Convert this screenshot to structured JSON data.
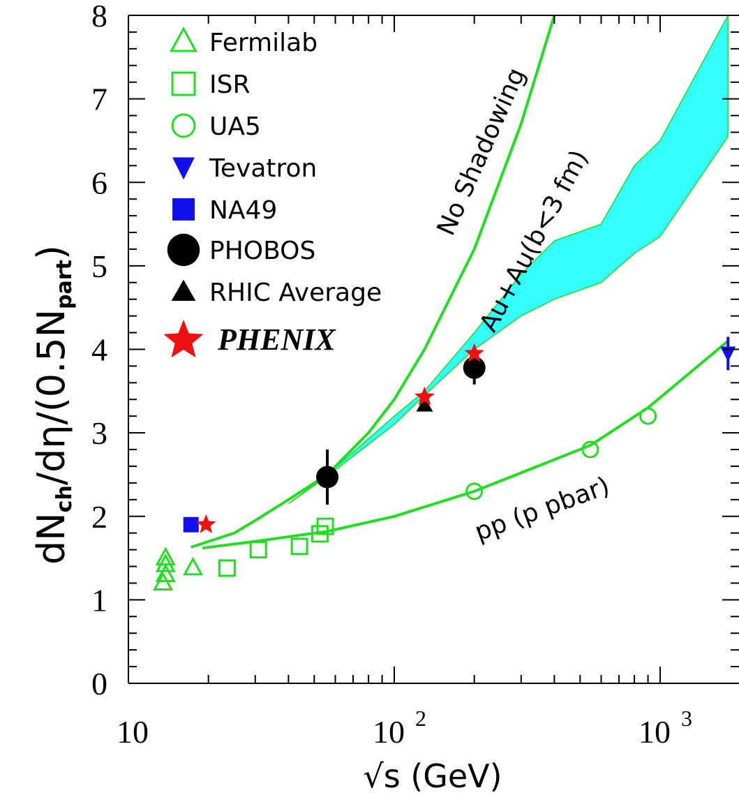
{
  "chart_data": {
    "type": "scatter",
    "xscale": "log",
    "xlim": [
      10,
      1800
    ],
    "ylim": [
      0,
      8
    ],
    "grid": false,
    "legend_placement": "top-left",
    "xlabel": "√s (GeV)",
    "ylabel": {
      "main_a": "dN",
      "sub_a": "ch",
      "main_b": "/dη/(0.5N",
      "sub_b": "part",
      "main_c": ")"
    },
    "y_ticks": [
      "0",
      "1",
      "2",
      "3",
      "4",
      "5",
      "6",
      "7",
      "8"
    ],
    "x_ticks": [
      {
        "value": 10,
        "base": "10",
        "exp": ""
      },
      {
        "value": 100,
        "base": "10",
        "exp": "2"
      },
      {
        "value": 1000,
        "base": "10",
        "exp": "3"
      }
    ],
    "series": [
      {
        "name": "Fermilab",
        "marker": "triangle-open",
        "color": "#22dd22",
        "points": [
          [
            13.5,
            1.2
          ],
          [
            13.8,
            1.3
          ],
          [
            13.8,
            1.42
          ],
          [
            13.8,
            1.5
          ],
          [
            17.5,
            1.38
          ]
        ]
      },
      {
        "name": "ISR",
        "marker": "square-open",
        "color": "#22dd22",
        "points": [
          [
            23.5,
            1.38
          ],
          [
            30.8,
            1.6
          ],
          [
            44,
            1.64
          ],
          [
            52.5,
            1.79
          ],
          [
            55,
            1.88
          ]
        ]
      },
      {
        "name": "UA5",
        "marker": "circle-open",
        "color": "#22dd22",
        "points": [
          [
            200,
            2.3
          ],
          [
            546,
            2.8
          ],
          [
            900,
            3.2
          ]
        ]
      },
      {
        "name": "Tevatron",
        "marker": "triangle-down-filled",
        "color": "#1010ee",
        "points": [
          [
            1800,
            3.95
          ]
        ],
        "errors": [
          0.2
        ]
      },
      {
        "name": "NA49",
        "marker": "square-filled",
        "color": "#1010ee",
        "points": [
          [
            17.2,
            1.9
          ]
        ]
      },
      {
        "name": "PHOBOS",
        "marker": "circle-filled",
        "color": "#000000",
        "points": [
          [
            56,
            2.47
          ],
          [
            200,
            3.78
          ]
        ],
        "errors": [
          0.33,
          0.2
        ]
      },
      {
        "name": "RHIC Average",
        "marker": "triangle-filled",
        "color": "#000000",
        "points": [
          [
            130,
            3.33
          ]
        ]
      },
      {
        "name": "PHENIX",
        "marker": "star-filled",
        "color": "#ee1111",
        "points": [
          [
            19.6,
            1.9
          ],
          [
            130,
            3.43
          ],
          [
            200,
            3.95
          ]
        ]
      }
    ],
    "curves": [
      {
        "label": "No Shadowing",
        "color": "#22dd22",
        "points": [
          [
            17.2,
            1.63
          ],
          [
            25,
            1.8
          ],
          [
            30,
            1.95
          ],
          [
            40,
            2.2
          ],
          [
            56,
            2.5
          ],
          [
            80,
            3.0
          ],
          [
            100,
            3.4
          ],
          [
            130,
            4.0
          ],
          [
            200,
            5.2
          ],
          [
            300,
            6.7
          ],
          [
            400,
            8.0
          ]
        ]
      },
      {
        "label": "pp (p pbar)",
        "color": "#22dd22",
        "points": [
          [
            19,
            1.62
          ],
          [
            30,
            1.7
          ],
          [
            56,
            1.82
          ],
          [
            100,
            2.0
          ],
          [
            200,
            2.3
          ],
          [
            546,
            2.85
          ],
          [
            900,
            3.3
          ],
          [
            1800,
            4.1
          ]
        ]
      }
    ],
    "band": {
      "label": "Au+Au(b<3 fm)",
      "color": "#33ffff",
      "upper": [
        [
          40,
          2.15
        ],
        [
          56,
          2.5
        ],
        [
          100,
          3.2
        ],
        [
          130,
          3.5
        ],
        [
          200,
          4.2
        ],
        [
          300,
          4.9
        ],
        [
          400,
          5.3
        ],
        [
          600,
          5.5
        ],
        [
          800,
          6.2
        ],
        [
          1000,
          6.5
        ],
        [
          1800,
          8.0
        ]
      ],
      "lower": [
        [
          1800,
          6.55
        ],
        [
          1000,
          5.35
        ],
        [
          800,
          5.15
        ],
        [
          600,
          4.8
        ],
        [
          400,
          4.6
        ],
        [
          300,
          4.4
        ],
        [
          200,
          4.0
        ],
        [
          130,
          3.45
        ],
        [
          100,
          3.1
        ],
        [
          56,
          2.48
        ],
        [
          40,
          2.15
        ]
      ]
    },
    "annotations": [
      "No Shadowing",
      "Au+Au(b<3 fm)",
      "pp (p pbar)"
    ]
  }
}
